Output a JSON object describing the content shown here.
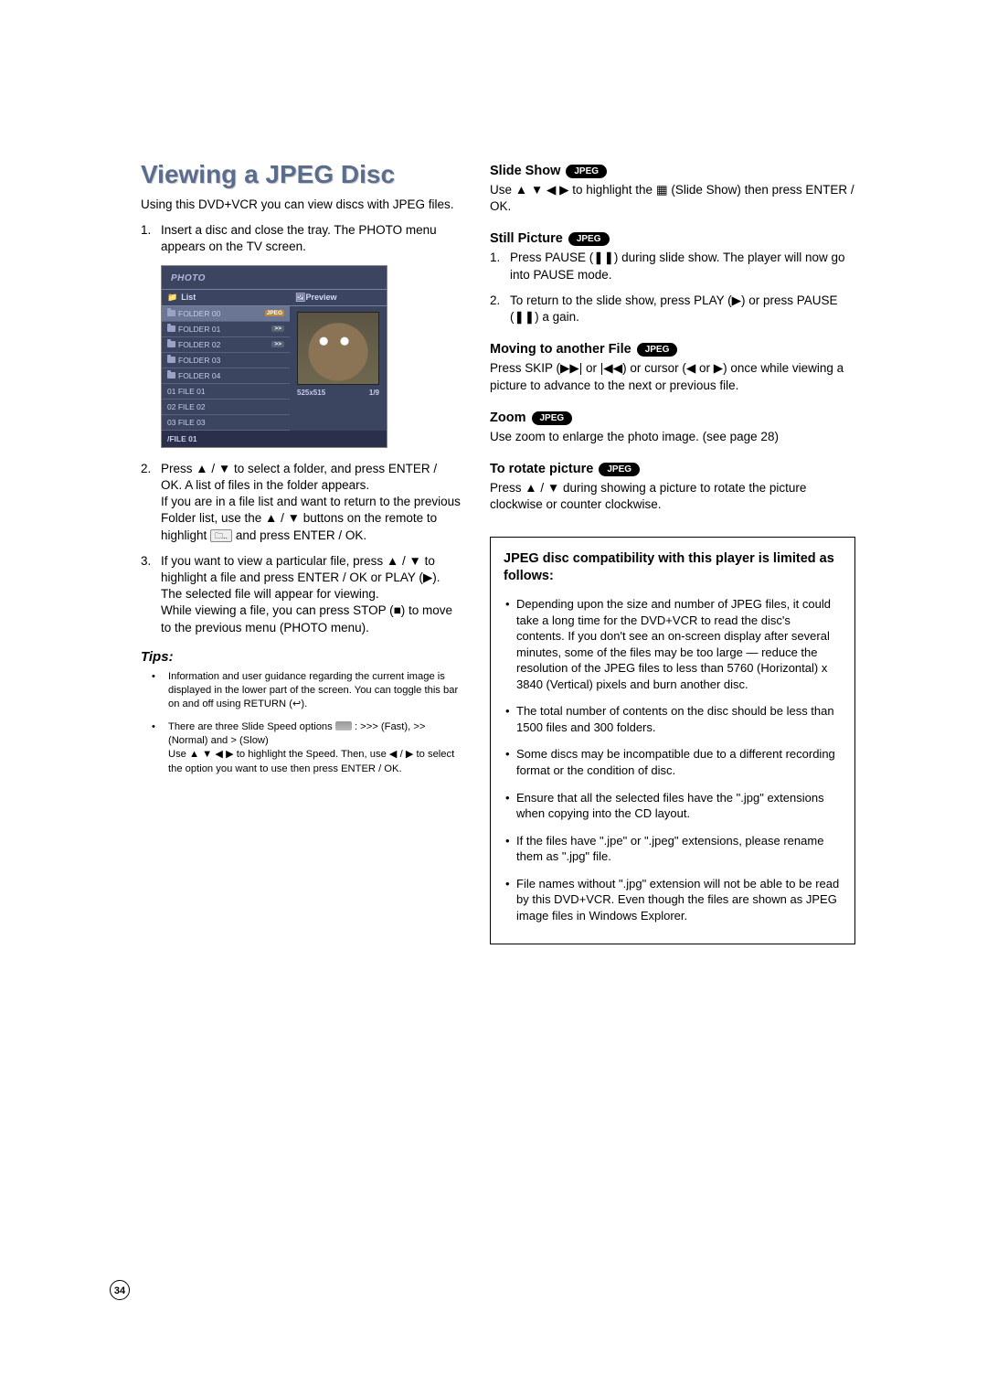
{
  "page_number": "34",
  "left": {
    "heading": "Viewing a JPEG Disc",
    "intro": "Using this DVD+VCR you can view discs with JPEG files.",
    "step1": "Insert a disc and close the tray. The PHOTO menu appears on the TV screen.",
    "step2a": "Press ▲ / ▼ to select a folder, and press ENTER / OK. A list of files in the folder appears.",
    "step2b": "If you are in a file list and want to return to the previous Folder list, use the ▲ / ▼ buttons on the remote to highlight ",
    "step2c": " and press ENTER / OK.",
    "step3a": "If you want to view a particular file, press ▲ / ▼ to highlight a file and press ENTER / OK or PLAY (▶). The selected file will appear for viewing.",
    "step3b": "While viewing a file, you can press STOP (■) to move to the previous menu (PHOTO menu).",
    "tips_h": "Tips:",
    "tip1": "Information and user guidance regarding the current image is displayed in the lower part of the screen. You can toggle this bar on and off using RETURN (↩).",
    "tip2a": "There are three Slide Speed options ",
    "tip2b": " : >>> (Fast), >> (Normal) and > (Slow)",
    "tip2c": "Use ▲ ▼ ◀ ▶ to highlight the Speed. Then, use ◀ / ▶ to select the option you want to use then press ENTER / OK."
  },
  "photo_menu": {
    "title": "PHOTO",
    "list_h": "List",
    "preview_h": "Preview",
    "rows": [
      {
        "label": "FOLDER 00",
        "icon": "folder",
        "badge": "JPEG",
        "sel": true
      },
      {
        "label": "FOLDER 01",
        "icon": "folder",
        "badge": ">>"
      },
      {
        "label": "FOLDER 02",
        "icon": "folder",
        "arrows": ">>"
      },
      {
        "label": "FOLDER 03",
        "icon": "folder"
      },
      {
        "label": "FOLDER 04",
        "icon": "folder"
      },
      {
        "label": "01 FILE 01"
      },
      {
        "label": "02 FILE 02"
      },
      {
        "label": "03 FILE 03"
      }
    ],
    "footer": "/FILE 01",
    "dim": "525x515",
    "idx": "1/9"
  },
  "right": {
    "slide_h": "Slide Show",
    "slide_p": "Use ▲ ▼ ◀ ▶ to highlight the  ▦  (Slide Show) then press ENTER / OK.",
    "still_h": "Still Picture",
    "still_1": "Press PAUSE (❚❚) during slide show. The player will now go into PAUSE mode.",
    "still_2": "To return to the slide show, press PLAY (▶) or press PAUSE (❚❚) a gain.",
    "move_h": "Moving to another File",
    "move_p": "Press SKIP (▶▶| or |◀◀) or cursor (◀ or ▶) once while viewing a picture to advance to the next or previous file.",
    "zoom_h": "Zoom",
    "zoom_p": "Use zoom to enlarge the photo image. (see page 28)",
    "rot_h": "To rotate picture",
    "rot_p": "Press ▲ / ▼ during showing a picture to rotate the picture clockwise or counter clockwise.",
    "jpeg_badge": "JPEG"
  },
  "compat": {
    "h": "JPEG disc compatibility with this player is limited as follows:",
    "b1": "Depending upon the size and number of JPEG files, it could take a long time for the DVD+VCR to read the disc's contents. If you don't see an on-screen display after several minutes, some of the files may be too large — reduce the resolution of the JPEG files to less than 5760 (Horizontal) x 3840 (Vertical) pixels and burn another disc.",
    "b2": "The total number of contents on the disc should be less than 1500 files and 300 folders.",
    "b3": "Some discs may be incompatible due to a different recording format or the condition of disc.",
    "b4": "Ensure that all the selected files have the \".jpg\" extensions when copying into the CD layout.",
    "b5": "If the files have \".jpe\" or \".jpeg\" extensions, please rename them as \".jpg\" file.",
    "b6": "File names without \".jpg\" extension will not be able to be read by this DVD+VCR. Even though the files are shown as JPEG image files in Windows Explorer."
  }
}
